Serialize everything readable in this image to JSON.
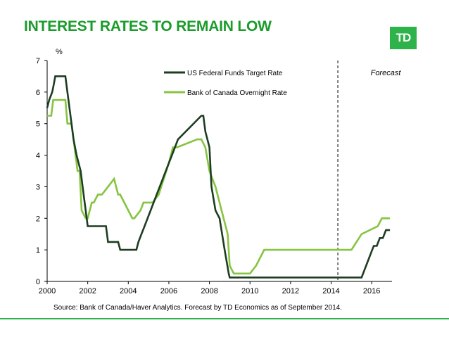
{
  "header": {
    "title": "INTEREST RATES TO REMAIN LOW",
    "logo_text": "TD"
  },
  "colors": {
    "title": "#1a9c2b",
    "brand": "#2db34a",
    "us_series": "#1d3d22",
    "ca_series": "#86c441",
    "rule": "#2db34a"
  },
  "chart_data": {
    "type": "line",
    "title": "",
    "xlabel": "",
    "ylabel": "%",
    "xlim": [
      2000,
      2017.0
    ],
    "ylim": [
      0,
      7
    ],
    "x_ticks": [
      2000,
      2002,
      2004,
      2006,
      2008,
      2010,
      2012,
      2014,
      2016
    ],
    "y_ticks": [
      0,
      1,
      2,
      3,
      4,
      5,
      6,
      7
    ],
    "grid": false,
    "legend": "top-center",
    "forecast_start": 2014.33,
    "annotations": [
      "Forecast"
    ],
    "series": [
      {
        "name": "US Federal Funds Target Rate",
        "x": [
          2000.0,
          2000.1,
          2000.25,
          2000.33,
          2000.4,
          2000.6,
          2000.9,
          2001.0,
          2001.1,
          2001.2,
          2001.3,
          2001.45,
          2001.55,
          2001.65,
          2001.75,
          2001.85,
          2001.95,
          2002.0,
          2002.5,
          2002.9,
          2003.0,
          2003.5,
          2003.6,
          2004.4,
          2004.5,
          2004.65,
          2004.8,
          2004.95,
          2005.1,
          2005.25,
          2005.4,
          2005.55,
          2005.7,
          2005.85,
          2006.0,
          2006.15,
          2006.3,
          2006.45,
          2007.6,
          2007.7,
          2007.8,
          2007.9,
          2008.0,
          2008.1,
          2008.3,
          2008.5,
          2008.75,
          2008.95,
          2009.0,
          2015.5,
          2015.65,
          2015.8,
          2015.95,
          2016.1,
          2016.25,
          2016.4,
          2016.55,
          2016.7,
          2016.9
        ],
        "y": [
          5.5,
          5.75,
          6.0,
          6.25,
          6.5,
          6.5,
          6.5,
          6.0,
          5.5,
          5.0,
          4.5,
          4.0,
          3.75,
          3.5,
          3.0,
          2.5,
          2.0,
          1.75,
          1.75,
          1.75,
          1.25,
          1.25,
          1.0,
          1.0,
          1.25,
          1.5,
          1.75,
          2.0,
          2.25,
          2.5,
          2.75,
          3.0,
          3.25,
          3.5,
          3.75,
          4.0,
          4.25,
          4.5,
          5.25,
          5.25,
          4.75,
          4.5,
          4.25,
          3.0,
          2.25,
          2.0,
          1.0,
          0.25,
          0.125,
          0.125,
          0.375,
          0.625,
          0.875,
          1.125,
          1.125,
          1.375,
          1.375,
          1.625,
          1.625
        ]
      },
      {
        "name": "Bank of Canada Overnight Rate",
        "x": [
          2000.0,
          2000.2,
          2000.3,
          2000.6,
          2000.9,
          2001.0,
          2001.2,
          2001.3,
          2001.5,
          2001.6,
          2001.7,
          2001.9,
          2002.0,
          2002.2,
          2002.3,
          2002.5,
          2002.7,
          2003.0,
          2003.3,
          2003.5,
          2003.6,
          2004.0,
          2004.2,
          2004.3,
          2004.6,
          2004.75,
          2005.2,
          2005.5,
          2005.75,
          2006.0,
          2006.2,
          2006.4,
          2007.4,
          2007.6,
          2007.8,
          2008.0,
          2008.3,
          2008.9,
          2009.0,
          2009.2,
          2010.0,
          2010.3,
          2010.5,
          2010.7,
          2015.0,
          2015.5,
          2016.3,
          2016.5,
          2016.9
        ],
        "y": [
          5.25,
          5.25,
          5.75,
          5.75,
          5.75,
          5.0,
          5.0,
          4.5,
          3.5,
          3.5,
          2.25,
          2.0,
          2.0,
          2.5,
          2.5,
          2.75,
          2.75,
          3.0,
          3.25,
          2.75,
          2.75,
          2.25,
          2.0,
          2.0,
          2.25,
          2.5,
          2.5,
          2.75,
          3.25,
          3.75,
          4.25,
          4.25,
          4.5,
          4.5,
          4.25,
          3.5,
          3.0,
          1.5,
          0.5,
          0.25,
          0.25,
          0.5,
          0.75,
          1.0,
          1.0,
          1.5,
          1.75,
          2.0,
          2.0
        ]
      }
    ],
    "source": "Source: Bank of Canada/Haver Analytics. Forecast by TD Economics as of September 2014."
  }
}
